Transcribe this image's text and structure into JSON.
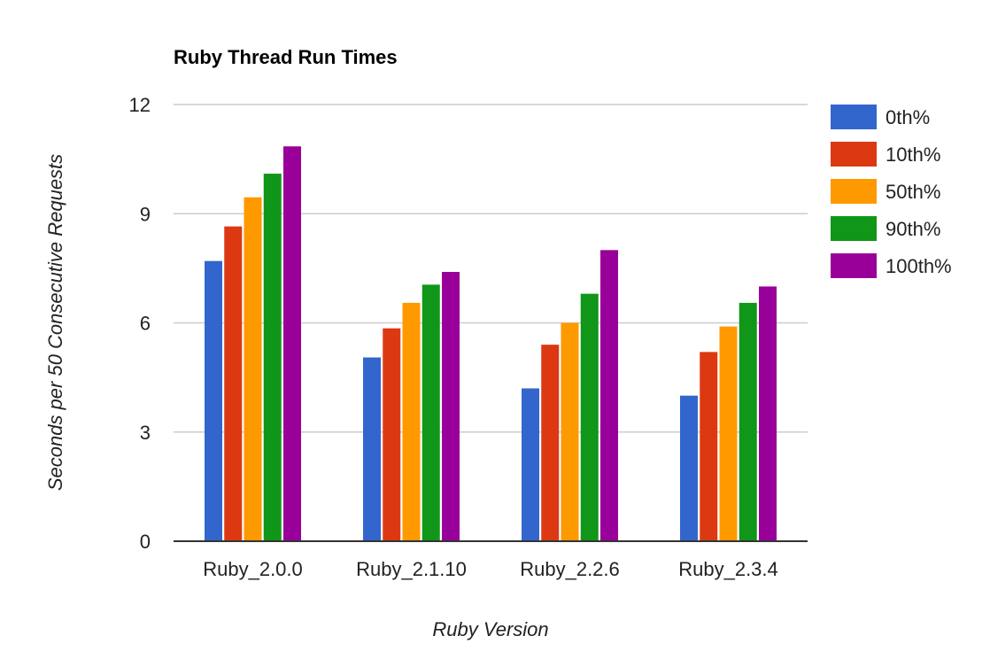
{
  "chart_data": {
    "type": "bar",
    "title": "Ruby Thread Run Times",
    "xlabel": "Ruby Version",
    "ylabel": "Seconds per 50 Consecutive Requests",
    "categories": [
      "Ruby_2.0.0",
      "Ruby_2.1.10",
      "Ruby_2.2.6",
      "Ruby_2.3.4"
    ],
    "yticks": [
      0,
      3,
      6,
      9,
      12
    ],
    "ylim": [
      0,
      12
    ],
    "grid": true,
    "legend_position": "right",
    "series": [
      {
        "name": "0th%",
        "color": "#3366cc",
        "values": [
          7.7,
          5.05,
          4.2,
          4.0
        ]
      },
      {
        "name": "10th%",
        "color": "#dc3912",
        "values": [
          8.65,
          5.85,
          5.4,
          5.2
        ]
      },
      {
        "name": "50th%",
        "color": "#ff9900",
        "values": [
          9.45,
          6.55,
          6.0,
          5.9
        ]
      },
      {
        "name": "90th%",
        "color": "#109618",
        "values": [
          10.1,
          7.05,
          6.8,
          6.55
        ]
      },
      {
        "name": "100th%",
        "color": "#990099",
        "values": [
          10.85,
          7.4,
          8.0,
          7.0
        ]
      }
    ]
  }
}
